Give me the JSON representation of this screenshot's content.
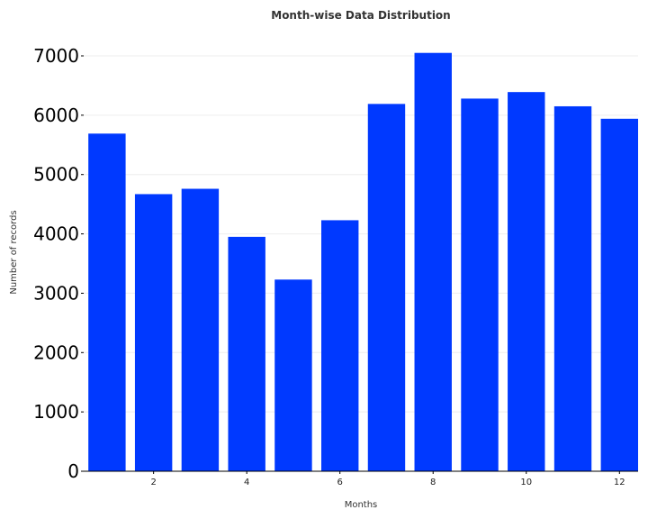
{
  "chart_data": {
    "type": "bar",
    "title": "Month-wise Data Distribution",
    "xlabel": "Months",
    "ylabel": "Number of records",
    "x": [
      1,
      2,
      3,
      4,
      5,
      6,
      7,
      8,
      9,
      10,
      11,
      12
    ],
    "values": [
      5690,
      4670,
      4760,
      3950,
      3230,
      4230,
      6190,
      7050,
      6280,
      6390,
      6150,
      5940
    ],
    "xticks": [
      "2",
      "4",
      "6",
      "8",
      "10",
      "12"
    ],
    "yticks": [
      "0",
      "1000",
      "2000",
      "3000",
      "4000",
      "5000",
      "6000",
      "7000"
    ],
    "ylim": [
      0,
      7000
    ],
    "grid": "horizontal",
    "bar_color": "#0039ff"
  }
}
